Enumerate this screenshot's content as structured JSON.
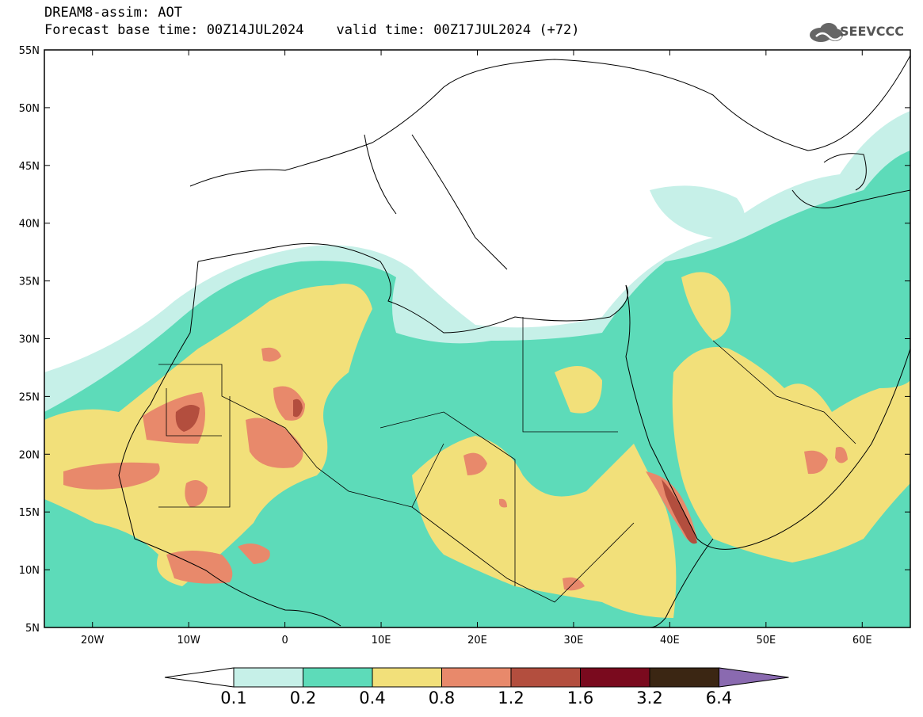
{
  "title": {
    "line1": "DREAM8-assim: AOT",
    "line2": "Forecast base time: 00Z14JUL2024    valid time: 00Z17JUL2024 (+72)"
  },
  "logo": {
    "text": "SEEVCCC",
    "icon": "cloud-icon"
  },
  "axes": {
    "lat_labels": [
      "55N",
      "50N",
      "45N",
      "40N",
      "35N",
      "30N",
      "25N",
      "20N",
      "15N",
      "10N",
      "5N"
    ],
    "lon_labels": [
      "20W",
      "10W",
      "0",
      "10E",
      "20E",
      "30E",
      "40E",
      "50E",
      "60E"
    ],
    "lat_range": [
      5,
      55
    ],
    "lon_range": [
      -25,
      65
    ]
  },
  "colorbar": {
    "labels": [
      "0.1",
      "0.2",
      "0.4",
      "0.8",
      "1.2",
      "1.6",
      "3.2",
      "6.4"
    ],
    "colors": [
      "#ffffff",
      "#c6f0e8",
      "#5ddbb9",
      "#f2e07a",
      "#e8896b",
      "#b34e3e",
      "#7a0a1e",
      "#3b2613",
      "#8a6ab0"
    ]
  }
}
